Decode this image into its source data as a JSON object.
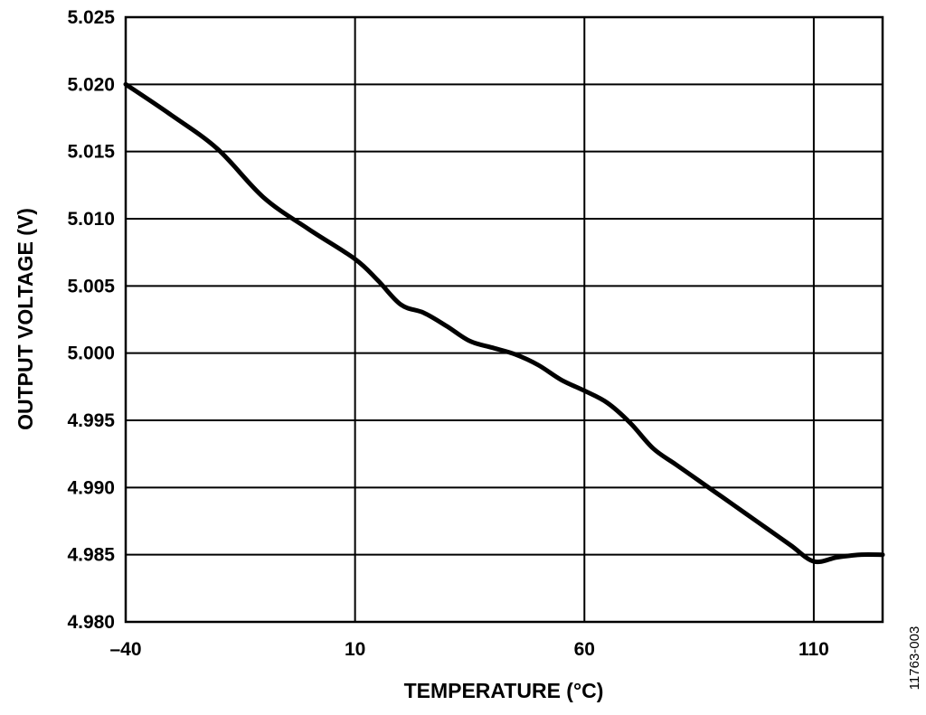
{
  "chart_data": {
    "type": "line",
    "xlabel": "TEMPERATURE (°C)",
    "ylabel": "OUTPUT VOLTAGE (V)",
    "xlim": [
      -40,
      125
    ],
    "ylim": [
      4.98,
      5.025
    ],
    "x_ticks": [
      -40,
      10,
      60,
      110
    ],
    "x_tick_labels": [
      "–40",
      "10",
      "60",
      "110"
    ],
    "y_ticks": [
      4.98,
      4.985,
      4.99,
      4.995,
      5.0,
      5.005,
      5.01,
      5.015,
      5.02,
      5.025
    ],
    "y_tick_labels": [
      "4.980",
      "4.985",
      "4.990",
      "4.995",
      "5.000",
      "5.005",
      "5.010",
      "5.015",
      "5.020",
      "5.025"
    ],
    "grid": true,
    "series": [
      {
        "x": [
          -40,
          -30,
          -20,
          -10,
          0,
          10,
          15,
          20,
          25,
          30,
          35,
          40,
          45,
          50,
          55,
          60,
          65,
          70,
          75,
          80,
          85,
          90,
          95,
          100,
          105,
          110,
          115,
          120,
          125
        ],
        "y": [
          5.02,
          5.0177,
          5.0152,
          5.0116,
          5.0092,
          5.007,
          5.0054,
          5.0036,
          5.003,
          5.002,
          5.0009,
          5.0004,
          4.9999,
          4.9991,
          4.998,
          4.9972,
          4.9963,
          4.9948,
          4.9929,
          4.9917,
          4.9905,
          4.9893,
          4.9881,
          4.9869,
          4.9857,
          4.9845,
          4.9848,
          4.985,
          4.985
        ]
      }
    ],
    "color": "#000000"
  },
  "figure_id": "11763-003"
}
